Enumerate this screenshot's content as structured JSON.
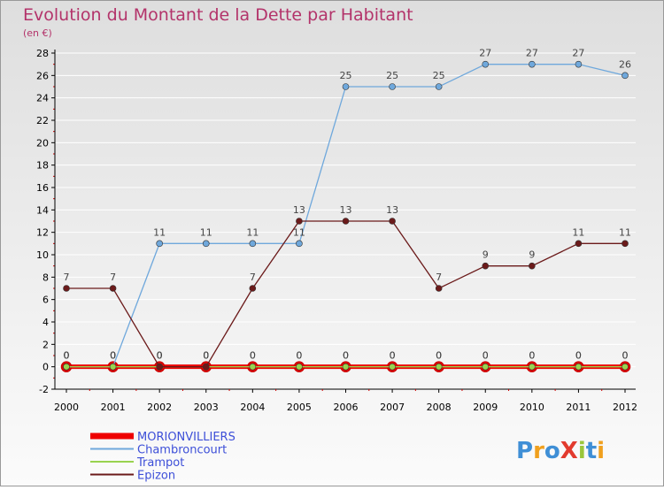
{
  "title": "Evolution du Montant de la Dette par Habitant",
  "subtitle": "(en €)",
  "logo_text": "ProXiti",
  "colors": {
    "title": "#b3336a",
    "axis": "#000000",
    "tick_marks": "#cc0000",
    "grid": "#ffffff",
    "bg_top": "#dedede",
    "bg_bottom": "#fbfbfb"
  },
  "chart_data": {
    "type": "line",
    "x": [
      2000,
      2001,
      2002,
      2003,
      2004,
      2005,
      2006,
      2007,
      2008,
      2009,
      2010,
      2011,
      2012
    ],
    "ylim": [
      -2,
      28
    ],
    "yticks": [
      -2,
      0,
      2,
      4,
      6,
      8,
      10,
      12,
      14,
      16,
      18,
      20,
      22,
      24,
      26,
      28
    ],
    "grid": "horizontal",
    "legend_position": "bottom-left",
    "series": [
      {
        "name": "MORIONVILLIERS",
        "color": "#ee0000",
        "values": [
          0,
          0,
          0,
          0,
          0,
          0,
          0,
          0,
          0,
          0,
          0,
          0,
          0
        ]
      },
      {
        "name": "Chambroncourt",
        "color": "#6fa8dc",
        "values": [
          0,
          0,
          11,
          11,
          11,
          11,
          25,
          25,
          25,
          27,
          27,
          27,
          26
        ]
      },
      {
        "name": "Trampot",
        "color": "#99d34f",
        "values": [
          0,
          0,
          0,
          0,
          0,
          0,
          0,
          0,
          0,
          0,
          0,
          0,
          0
        ]
      },
      {
        "name": "Epizon",
        "color": "#6b1a1a",
        "values": [
          7,
          7,
          0,
          0,
          7,
          13,
          13,
          13,
          7,
          9,
          9,
          11,
          11
        ]
      }
    ]
  }
}
